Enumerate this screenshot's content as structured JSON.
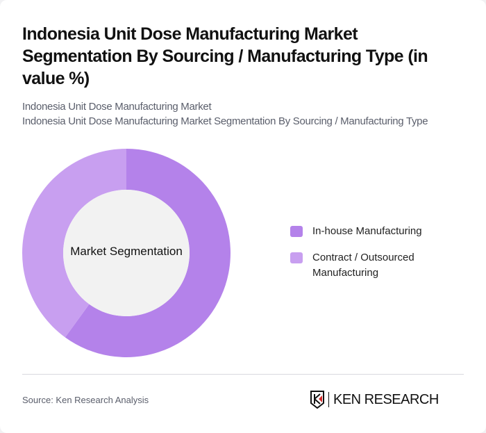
{
  "header": {
    "title": "Indonesia Unit Dose Manufacturing Market Segmentation By Sourcing / Manufacturing Type (in value %)",
    "subtitle_line1": "Indonesia Unit Dose Manufacturing Market",
    "subtitle_line2": "Indonesia Unit Dose Manufacturing Market Segmentation By Sourcing / Manufacturing Type"
  },
  "chart": {
    "center_label": "Market Segmentation",
    "legend": [
      {
        "label": "In-house Manufacturing",
        "color": "#b482ea"
      },
      {
        "label": "Contract / Outsourced Manufacturing",
        "color": "#c89ff0"
      }
    ]
  },
  "footer": {
    "source": "Source: Ken Research Analysis",
    "logo_text": "KEN RESEARCH"
  },
  "chart_data": {
    "type": "pie",
    "variant": "donut",
    "title": "Indonesia Unit Dose Manufacturing Market Segmentation By Sourcing / Manufacturing Type (in value %)",
    "center_label": "Market Segmentation",
    "categories": [
      "In-house Manufacturing",
      "Contract / Outsourced Manufacturing"
    ],
    "values": [
      60,
      40
    ],
    "colors": [
      "#b482ea",
      "#c89ff0"
    ],
    "legend_position": "right",
    "unit": "%"
  }
}
